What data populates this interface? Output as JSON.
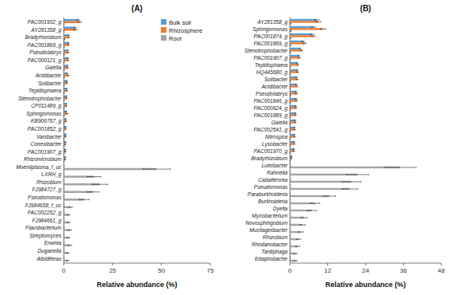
{
  "chart_data": [
    {
      "type": "bar",
      "orientation": "horizontal",
      "title": "(A)",
      "categories": [
        "PAC001932_g",
        "AY281358_g",
        "Bradyrhizobium",
        "PAC001869_g",
        "Pseudolabrys",
        "PAC000121_g",
        "Gaiella",
        "Acidibacter",
        "Solibacter",
        "Tepidisphaera",
        "Stenotrophobacter",
        "CP011489_g",
        "Sphingomonas",
        "KB906767_g",
        "PAC001852_g",
        "Vanibacter",
        "Conexibacter",
        "PAC001907_g",
        "Rhizomicrobium",
        "Moeniiplasma_f_uc",
        "LXRH_g",
        "Rhizobium",
        "FJ984727_g",
        "Pseudomonas",
        "FJ984658_f_uc",
        "PAC002252_g",
        "FJ984661_g",
        "Flavobacterium",
        "Streptomyces",
        "Erwinia",
        "Duganella",
        "Albidiferax"
      ],
      "series": [
        {
          "name": "Bulk soil",
          "color": "#5b9bd5",
          "values": [
            7.5,
            5.8,
            2.5,
            2.3,
            2.1,
            2.1,
            1.9,
            1.7,
            1.6,
            1.5,
            1.4,
            1.3,
            1.2,
            1.1,
            1.0,
            1.0,
            0.9,
            0.9,
            0.8,
            0.0,
            0.0,
            0.0,
            0.0,
            0.0,
            0.0,
            0.0,
            0.0,
            0.0,
            0.0,
            0.0,
            0.0,
            0.0
          ],
          "errors": [
            0.7,
            0.6,
            0.3,
            0.25,
            0.2,
            0.2,
            0.2,
            0.35,
            0.2,
            0.15,
            0.15,
            0.1,
            0.25,
            0.1,
            0.1,
            0.1,
            0.1,
            0.1,
            0.1,
            0.0,
            0.0,
            0.0,
            0.0,
            0.0,
            0.0,
            0.0,
            0.0,
            0.0,
            0.0,
            0.0,
            0.0,
            0.0
          ]
        },
        {
          "name": "Rhizosphere",
          "color": "#ed7d31",
          "values": [
            8.2,
            6.2,
            2.6,
            2.5,
            2.2,
            2.2,
            2.0,
            2.3,
            1.7,
            1.6,
            1.5,
            1.4,
            1.7,
            1.2,
            1.1,
            1.0,
            0.9,
            0.9,
            0.8,
            0.0,
            0.0,
            0.0,
            0.0,
            0.0,
            0.0,
            0.0,
            0.0,
            0.0,
            0.0,
            0.0,
            0.0,
            0.0
          ],
          "errors": [
            0.8,
            0.7,
            0.3,
            0.25,
            0.2,
            0.2,
            0.2,
            0.4,
            0.2,
            0.2,
            0.15,
            0.15,
            0.35,
            0.15,
            0.1,
            0.1,
            0.1,
            0.1,
            0.1,
            0.0,
            0.0,
            0.0,
            0.0,
            0.0,
            0.0,
            0.0,
            0.0,
            0.0,
            0.0,
            0.0,
            0.0,
            0.0
          ]
        },
        {
          "name": "Root",
          "color": "#a5a5a5",
          "values": [
            0.0,
            0.0,
            0.4,
            0.2,
            0.2,
            0.2,
            0.2,
            0.2,
            0.2,
            0.15,
            0.15,
            0.15,
            0.15,
            0.15,
            0.1,
            0.1,
            0.1,
            0.1,
            0.1,
            47.5,
            15.5,
            18.5,
            15.0,
            10.5,
            3.5,
            2.5,
            2.5,
            3.2,
            2.5,
            3.2,
            2.2,
            2.0
          ],
          "errors": [
            0.0,
            0.0,
            0.15,
            0.1,
            0.1,
            0.1,
            0.1,
            0.1,
            0.1,
            0.1,
            0.1,
            0.1,
            0.1,
            0.1,
            0.1,
            0.1,
            0.05,
            0.05,
            0.05,
            7.0,
            3.5,
            4.0,
            3.0,
            2.5,
            0.8,
            0.7,
            0.7,
            0.8,
            0.6,
            0.9,
            0.5,
            0.5
          ]
        }
      ],
      "xlim": [
        0,
        75
      ],
      "xticks": [
        0,
        25,
        50,
        75
      ],
      "xlabel": "Relative abundance (%)",
      "legend": "upper right"
    },
    {
      "type": "bar",
      "orientation": "horizontal",
      "title": "(B)",
      "categories": [
        "AY281358_g",
        "Sphingomonas",
        "PAC001874_g",
        "PAC001869_g",
        "Stenotrophobacter",
        "PAC001907_g",
        "Tepidisphaera",
        "HQ445680_g",
        "Solibacter",
        "Acidibacter",
        "Pseudolabrys",
        "PAC001846_g",
        "PAC000624_g",
        "PAC001889_g",
        "Gaiella",
        "PAC002541_g",
        "Nitrospira",
        "Lysobacter",
        "PAC001970_g",
        "Bradyrhizobium",
        "Luteibacter",
        "Rahnella",
        "Caballeronia",
        "Pseudomonas",
        "Paraburkholderia",
        "Burkholderia",
        "Dyella",
        "Mycobacterium",
        "Novosphingobium",
        "Mucilaginibacter",
        "Rhizobium",
        "Rhodanobacter",
        "Tardiphaga",
        "Edaphobacter"
      ],
      "series": [
        {
          "color": "#5b9bd5",
          "values": [
            8.5,
            7.5,
            7.0,
            4.2,
            3.2,
            2.8,
            2.3,
            2.3,
            2.1,
            2.0,
            1.9,
            1.9,
            1.8,
            1.7,
            1.6,
            1.4,
            1.4,
            1.3,
            1.2,
            0.5,
            0.0,
            0.0,
            0.0,
            0.0,
            0.0,
            0.0,
            0.0,
            0.0,
            0.0,
            0.0,
            0.0,
            0.0,
            0.0,
            0.0
          ],
          "errors": [
            0.7,
            0.6,
            0.55,
            0.35,
            0.25,
            0.25,
            0.2,
            0.2,
            0.2,
            0.2,
            0.2,
            0.2,
            0.2,
            0.2,
            0.2,
            0.15,
            0.15,
            0.15,
            0.15,
            0.1,
            0.0,
            0.0,
            0.0,
            0.0,
            0.0,
            0.0,
            0.0,
            0.0,
            0.0,
            0.0,
            0.0,
            0.0,
            0.0,
            0.0
          ]
        },
        {
          "color": "#ed7d31",
          "values": [
            9.0,
            10.5,
            7.5,
            4.7,
            3.7,
            3.0,
            2.5,
            2.5,
            2.3,
            2.2,
            2.1,
            2.1,
            1.9,
            1.8,
            1.7,
            1.5,
            1.5,
            1.4,
            1.3,
            0.55,
            0.0,
            0.0,
            0.0,
            0.0,
            0.0,
            0.0,
            0.0,
            0.0,
            0.0,
            0.0,
            0.0,
            0.0,
            0.0,
            0.0
          ],
          "errors": [
            0.8,
            0.9,
            0.6,
            0.4,
            0.3,
            0.25,
            0.25,
            0.25,
            0.25,
            0.25,
            0.25,
            0.25,
            0.2,
            0.2,
            0.2,
            0.2,
            0.2,
            0.2,
            0.2,
            0.1,
            0.0,
            0.0,
            0.0,
            0.0,
            0.0,
            0.0,
            0.0,
            0.0,
            0.0,
            0.0,
            0.0,
            0.0,
            0.0,
            0.0
          ]
        },
        {
          "color": "#a5a5a5",
          "values": [
            0.2,
            0.3,
            0.2,
            0.2,
            0.15,
            0.15,
            0.15,
            0.15,
            0.15,
            0.15,
            0.15,
            0.15,
            0.15,
            0.15,
            0.15,
            0.15,
            0.15,
            0.15,
            0.15,
            0.15,
            35.0,
            21.5,
            19.5,
            19.0,
            12.5,
            8.0,
            7.0,
            4.5,
            4.0,
            3.5,
            2.8,
            2.5,
            1.8,
            1.8
          ],
          "errors": [
            0.1,
            0.1,
            0.1,
            0.1,
            0.05,
            0.05,
            0.05,
            0.05,
            0.05,
            0.05,
            0.05,
            0.05,
            0.05,
            0.05,
            0.05,
            0.05,
            0.05,
            0.05,
            0.05,
            0.05,
            5.0,
            3.5,
            3.0,
            2.5,
            2.0,
            1.5,
            1.5,
            1.0,
            0.9,
            0.8,
            0.6,
            0.6,
            0.5,
            0.45
          ]
        }
      ],
      "xlim": [
        0,
        48
      ],
      "xticks": [
        0,
        12,
        24,
        36,
        48
      ],
      "xlabel": "Relative abundance (%)"
    }
  ]
}
